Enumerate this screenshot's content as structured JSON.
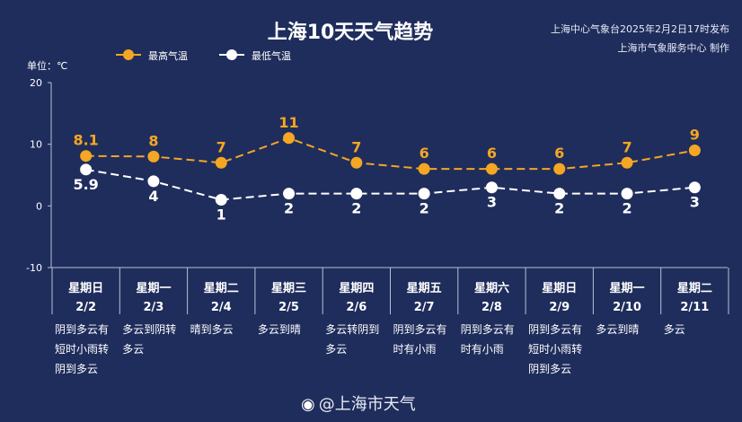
{
  "title": "上海10天天气趋势",
  "publisher_line1": "上海中心气象台2025年2月2日17时发布",
  "publisher_line2": "上海市气象服务中心 制作",
  "unit_label": "单位：℃",
  "colors": {
    "background": "#1f2d5c",
    "high": "#f5a623",
    "low": "#ffffff",
    "grid": "#b7c0d8"
  },
  "watermark": "@上海市天气",
  "watermark_icon": "weibo-icon",
  "chart_data": {
    "type": "line",
    "title": "上海10天天气趋势",
    "xlabel": "",
    "ylabel": "单位：℃",
    "ylim": [
      -10,
      20
    ],
    "yticks": [
      "20",
      "10",
      "0",
      "-10"
    ],
    "legend_position": "top-left",
    "categories": [
      "2/2",
      "2/3",
      "2/4",
      "2/5",
      "2/6",
      "2/7",
      "2/8",
      "2/9",
      "2/10",
      "2/11"
    ],
    "series": [
      {
        "name": "最高气温",
        "values": [
          8.1,
          8,
          7,
          11,
          7,
          6,
          6,
          6,
          7,
          9
        ],
        "labels": [
          "8.1",
          "8",
          "7",
          "11",
          "7",
          "6",
          "6",
          "6",
          "7",
          "9"
        ]
      },
      {
        "name": "最低气温",
        "values": [
          5.9,
          4,
          1,
          2,
          2,
          2,
          3,
          2,
          2,
          3
        ],
        "labels": [
          "5.9",
          "4",
          "1",
          "2",
          "2",
          "2",
          "3",
          "2",
          "2",
          "3"
        ]
      }
    ]
  },
  "days": [
    {
      "weekday": "星期日",
      "date": "2/2",
      "weather": [
        "阴到多云有",
        "短时小雨转",
        "阴到多云"
      ]
    },
    {
      "weekday": "星期一",
      "date": "2/3",
      "weather": [
        "多云到阴转",
        "多云"
      ]
    },
    {
      "weekday": "星期二",
      "date": "2/4",
      "weather": [
        "晴到多云"
      ]
    },
    {
      "weekday": "星期三",
      "date": "2/5",
      "weather": [
        "多云到晴"
      ]
    },
    {
      "weekday": "星期四",
      "date": "2/6",
      "weather": [
        "多云转阴到",
        "多云"
      ]
    },
    {
      "weekday": "星期五",
      "date": "2/7",
      "weather": [
        "阴到多云有",
        "时有小雨"
      ]
    },
    {
      "weekday": "星期六",
      "date": "2/8",
      "weather": [
        "阴到多云有",
        "时有小雨"
      ]
    },
    {
      "weekday": "星期日",
      "date": "2/9",
      "weather": [
        "阴到多云有",
        "短时小雨转",
        "阴到多云"
      ]
    },
    {
      "weekday": "星期一",
      "date": "2/10",
      "weather": [
        "多云到晴"
      ]
    },
    {
      "weekday": "星期二",
      "date": "2/11",
      "weather": [
        "多云"
      ]
    }
  ]
}
